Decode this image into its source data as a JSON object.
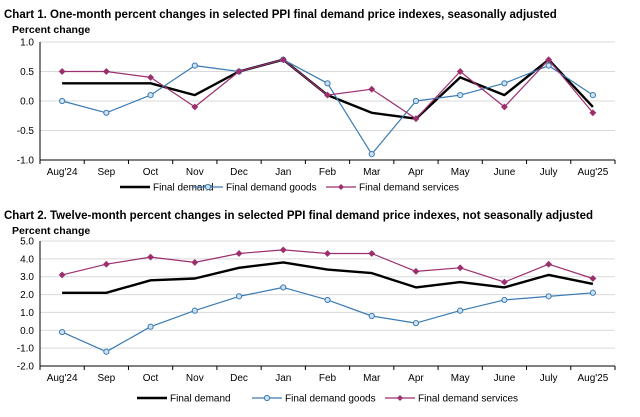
{
  "colors": {
    "final_demand": "#000000",
    "goods": "#3a7bb5",
    "services": "#9c2f6e",
    "grid": "#d9d9d9",
    "axis": "#000000"
  },
  "chart_data": [
    {
      "type": "line",
      "title": "Chart 1. One-month percent changes in selected PPI final demand price indexes, seasonally adjusted",
      "ylabel": "Percent change",
      "categories": [
        "Aug'24",
        "Sep",
        "Oct",
        "Nov",
        "Dec",
        "Jan",
        "Feb",
        "Mar",
        "Apr",
        "May",
        "June",
        "July",
        "Aug'25"
      ],
      "ylim": [
        -1.0,
        1.0
      ],
      "yticks": [
        "1.0",
        "0.5",
        "0.0",
        "-0.5",
        "-1.0"
      ],
      "ytick_values": [
        1.0,
        0.5,
        0.0,
        -0.5,
        -1.0
      ],
      "grid": true,
      "legend_position": "bottom",
      "series": [
        {
          "name": "Final demand",
          "color_key": "final_demand",
          "marker": "none",
          "values": [
            0.3,
            0.3,
            0.3,
            0.1,
            0.5,
            0.7,
            0.1,
            -0.2,
            -0.3,
            0.4,
            0.1,
            0.7,
            -0.1
          ]
        },
        {
          "name": "Final demand goods",
          "color_key": "goods",
          "marker": "circle",
          "values": [
            0.0,
            -0.2,
            0.1,
            0.6,
            0.5,
            0.7,
            0.3,
            -0.9,
            0.0,
            0.1,
            0.3,
            0.6,
            0.1
          ]
        },
        {
          "name": "Final demand services",
          "color_key": "services",
          "marker": "diamond",
          "values": [
            0.5,
            0.5,
            0.4,
            -0.1,
            0.5,
            0.7,
            0.1,
            0.2,
            -0.3,
            0.5,
            -0.1,
            0.7,
            -0.2
          ]
        }
      ]
    },
    {
      "type": "line",
      "title": "Chart 2. Twelve-month percent changes in selected PPI final demand price indexes, not seasonally adjusted",
      "ylabel": "Percent change",
      "categories": [
        "Aug'24",
        "Sep",
        "Oct",
        "Nov",
        "Dec",
        "Jan",
        "Feb",
        "Mar",
        "Apr",
        "May",
        "June",
        "July",
        "Aug'25"
      ],
      "ylim": [
        -2.0,
        5.0
      ],
      "yticks": [
        "5.0",
        "4.0",
        "3.0",
        "2.0",
        "1.0",
        "0.0",
        "-1.0",
        "-2.0"
      ],
      "ytick_values": [
        5.0,
        4.0,
        3.0,
        2.0,
        1.0,
        0.0,
        -1.0,
        -2.0
      ],
      "grid": true,
      "legend_position": "bottom",
      "series": [
        {
          "name": "Final demand",
          "color_key": "final_demand",
          "marker": "none",
          "values": [
            2.1,
            2.1,
            2.8,
            2.9,
            3.5,
            3.8,
            3.4,
            3.2,
            2.4,
            2.7,
            2.4,
            3.1,
            2.6
          ]
        },
        {
          "name": "Final demand goods",
          "color_key": "goods",
          "marker": "circle",
          "values": [
            -0.1,
            -1.2,
            0.2,
            1.1,
            1.9,
            2.4,
            1.7,
            0.8,
            0.4,
            1.1,
            1.7,
            1.9,
            2.1
          ]
        },
        {
          "name": "Final demand services",
          "color_key": "services",
          "marker": "diamond",
          "values": [
            3.1,
            3.7,
            4.1,
            3.8,
            4.3,
            4.5,
            4.3,
            4.3,
            3.3,
            3.5,
            2.7,
            3.7,
            2.9
          ]
        }
      ]
    }
  ]
}
